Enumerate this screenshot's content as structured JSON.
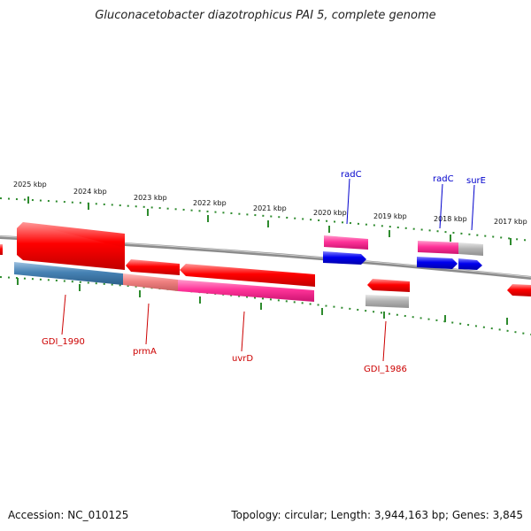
{
  "title": "Gluconacetobacter diazotrophicus PAI 5, complete genome",
  "footer": {
    "accession": "Accession: NC_010125",
    "topology": "Topology: circular; Length: 3,944,163 bp; Genes: 3,845"
  },
  "colors": {
    "backbone": "#8c8c8c",
    "tick": "#2e8b2e",
    "gene_red": "#ff0000",
    "gene_pink": "#ff3399",
    "gene_salmon": "#f08080",
    "gene_blue": "#0000ee",
    "gene_steel": "#4682b4",
    "gene_gray": "#b4b4b4",
    "label_red": "#cc0000",
    "label_blue": "#0000cc"
  },
  "scale_labels": [
    "2025 kbp",
    "2024 kbp",
    "2023 kbp",
    "2022 kbp",
    "2021 kbp",
    "2020 kbp",
    "2019 kbp",
    "2018 kbp",
    "2017 kbp"
  ],
  "gene_labels": {
    "radC_1": "radC",
    "radC_2": "radC",
    "surE": "surE",
    "gdi1990": "GDI_1990",
    "prmA": "prmA",
    "uvrD": "uvrD",
    "gdi1986": "GDI_1986"
  }
}
